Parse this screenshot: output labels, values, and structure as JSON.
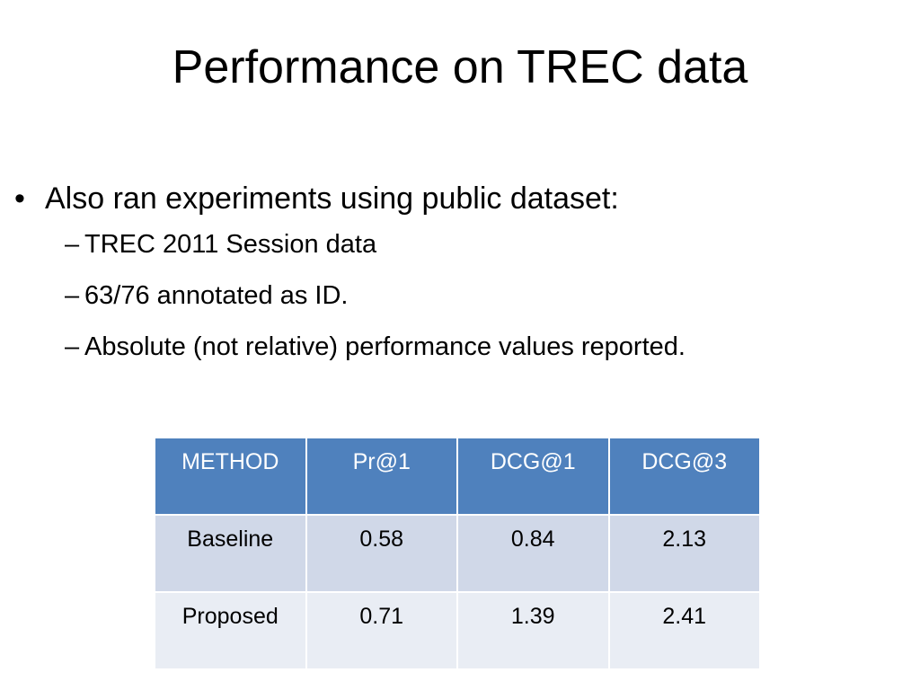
{
  "title": "Performance on TREC data",
  "bullet": {
    "mark": "•",
    "text": "Also ran experiments using public dataset:",
    "sub_mark": "–",
    "sub_items": [
      "TREC 2011 Session data",
      "63/76 annotated as ID.",
      "Absolute (not relative) performance values reported."
    ]
  },
  "table": {
    "headers": [
      "METHOD",
      "Pr@1",
      "DCG@1",
      "DCG@3"
    ],
    "rows": [
      [
        "Baseline",
        "0.58",
        "0.84",
        "2.13"
      ],
      [
        "Proposed",
        "0.71",
        "1.39",
        "2.41"
      ]
    ]
  },
  "colors": {
    "header_bg": "#4f81bd",
    "row_odd_bg": "#d0d8e8",
    "row_even_bg": "#e9edf4"
  }
}
